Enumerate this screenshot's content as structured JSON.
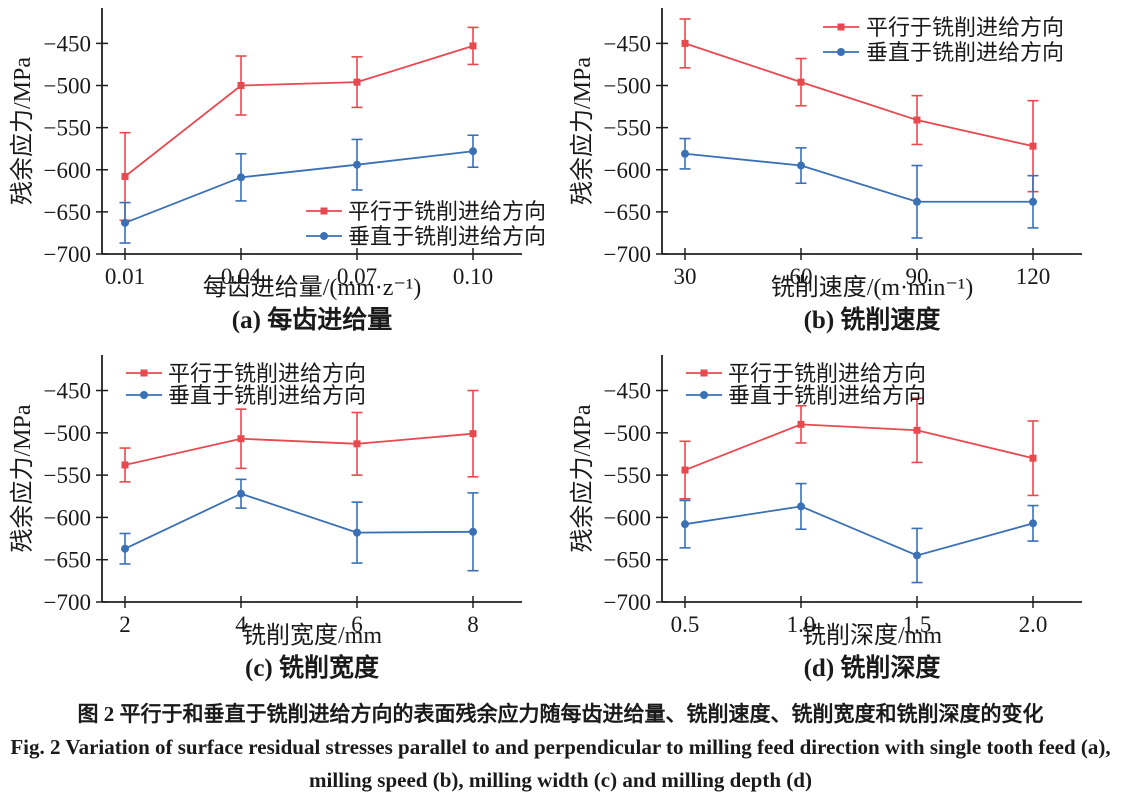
{
  "caption": {
    "zh": "图 2  平行于和垂直于铣削进给方向的表面残余应力随每齿进给量、铣削速度、铣削宽度和铣削深度的变化",
    "en_line1": "Fig. 2  Variation of surface residual stresses parallel to and perpendicular to milling feed direction with single tooth feed (a),",
    "en_line2": "milling speed (b), milling width (c) and milling depth (d)"
  },
  "shared": {
    "ylabel": "残余应力/MPa",
    "yticks": [
      -450,
      -500,
      -550,
      -600,
      -650,
      -700
    ],
    "ylim": [
      -700,
      -408
    ],
    "grid": false,
    "colors": {
      "parallel": "#e8494f",
      "perpendicular": "#3a70b5",
      "axis": "#231f20",
      "text": "#1a1a1a"
    },
    "legend_labels": {
      "parallel": "平行于铣削进给方向",
      "perpendicular": "垂直于铣削进给方向"
    }
  },
  "chart_data": [
    {
      "id": "a",
      "type": "line",
      "title": "(a) 每齿进给量",
      "xlabel": "每齿进给量/(mm·z⁻¹)",
      "ylabel": "残余应力/MPa",
      "categories": [
        "0.01",
        "0.04",
        "0.07",
        "0.10"
      ],
      "legend_position": "lower-right",
      "series": [
        {
          "name": "平行于铣削进给方向",
          "marker": "square",
          "color": "#e8494f",
          "values": [
            -608,
            -500,
            -496,
            -453
          ],
          "errors": [
            52,
            35,
            30,
            22
          ]
        },
        {
          "name": "垂直于铣削进给方向",
          "marker": "circle",
          "color": "#3a70b5",
          "values": [
            -663,
            -609,
            -594,
            -578
          ],
          "errors": [
            24,
            28,
            30,
            19
          ]
        }
      ]
    },
    {
      "id": "b",
      "type": "line",
      "title": "(b) 铣削速度",
      "xlabel": "铣削速度/(m·min⁻¹)",
      "ylabel": "残余应力/MPa",
      "categories": [
        "30",
        "60",
        "90",
        "120"
      ],
      "legend_position": "upper-right",
      "series": [
        {
          "name": "平行于铣削进给方向",
          "marker": "square",
          "color": "#e8494f",
          "values": [
            -450,
            -496,
            -541,
            -572
          ],
          "errors": [
            29,
            28,
            29,
            54
          ]
        },
        {
          "name": "垂直于铣削进给方向",
          "marker": "circle",
          "color": "#3a70b5",
          "values": [
            -581,
            -595,
            -638,
            -638
          ],
          "errors": [
            18,
            21,
            43,
            31
          ]
        }
      ]
    },
    {
      "id": "c",
      "type": "line",
      "title": "(c) 铣削宽度",
      "xlabel": "铣削宽度/mm",
      "ylabel": "残余应力/MPa",
      "categories": [
        "2",
        "4",
        "6",
        "8"
      ],
      "legend_position": "upper-left",
      "series": [
        {
          "name": "平行于铣削进给方向",
          "marker": "square",
          "color": "#e8494f",
          "values": [
            -538,
            -507,
            -513,
            -501
          ],
          "errors": [
            20,
            35,
            37,
            51
          ]
        },
        {
          "name": "垂直于铣削进给方向",
          "marker": "circle",
          "color": "#3a70b5",
          "values": [
            -637,
            -572,
            -618,
            -617
          ],
          "errors": [
            18,
            17,
            36,
            46
          ]
        }
      ]
    },
    {
      "id": "d",
      "type": "line",
      "title": "(d) 铣削深度",
      "xlabel": "铣削深度/mm",
      "ylabel": "残余应力/MPa",
      "categories": [
        "0.5",
        "1.0",
        "1.5",
        "2.0"
      ],
      "legend_position": "upper-left",
      "series": [
        {
          "name": "平行于铣削进给方向",
          "marker": "square",
          "color": "#e8494f",
          "values": [
            -544,
            -490,
            -497,
            -530
          ],
          "errors": [
            34,
            22,
            38,
            44
          ]
        },
        {
          "name": "垂直于铣削进给方向",
          "marker": "circle",
          "color": "#3a70b5",
          "values": [
            -608,
            -587,
            -645,
            -607
          ],
          "errors": [
            28,
            27,
            32,
            21
          ]
        }
      ]
    }
  ]
}
